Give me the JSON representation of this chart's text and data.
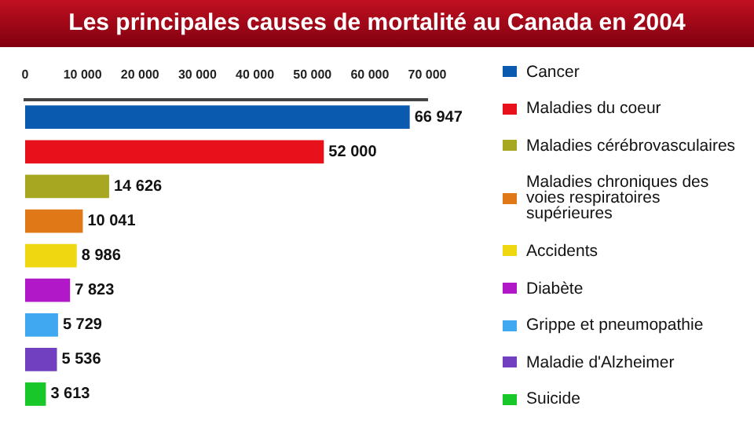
{
  "chart_data": {
    "type": "bar",
    "orientation": "horizontal",
    "title": "Les principales causes de mortalité au Canada en 2004",
    "categories": [
      null,
      null,
      null,
      null,
      null,
      null,
      null,
      null,
      null
    ],
    "series": [
      {
        "name": "Cancer",
        "color": "#0a5bb0",
        "values": [
          66947,
          null,
          null,
          null,
          null,
          null,
          null,
          null,
          null
        ],
        "value_labels": [
          "66 947",
          null,
          null,
          null,
          null,
          null,
          null,
          null,
          null
        ]
      },
      {
        "name": "Maladies du coeur",
        "color": "#e8101a",
        "values": [
          null,
          52000,
          null,
          null,
          null,
          null,
          null,
          null,
          null
        ],
        "value_labels": [
          null,
          "52 000",
          null,
          null,
          null,
          null,
          null,
          null,
          null
        ]
      },
      {
        "name": "Maladies cérébrovasculaires",
        "color": "#a8a820",
        "values": [
          null,
          null,
          14626,
          null,
          null,
          null,
          null,
          null,
          null
        ],
        "value_labels": [
          null,
          null,
          "14 626",
          null,
          null,
          null,
          null,
          null,
          null
        ]
      },
      {
        "name": "Maladies chroniques des voies respiratoires supérieures",
        "color": "#e07818",
        "values": [
          null,
          null,
          null,
          10041,
          null,
          null,
          null,
          null,
          null
        ],
        "value_labels": [
          null,
          null,
          null,
          "10 041",
          null,
          null,
          null,
          null,
          null
        ]
      },
      {
        "name": "Accidents",
        "color": "#f0d810",
        "values": [
          null,
          null,
          null,
          null,
          8986,
          null,
          null,
          null,
          null
        ],
        "value_labels": [
          null,
          null,
          null,
          null,
          "8 986",
          null,
          null,
          null,
          null
        ]
      },
      {
        "name": "Diabète",
        "color": "#b018c8",
        "values": [
          null,
          null,
          null,
          null,
          null,
          7823,
          null,
          null,
          null
        ],
        "value_labels": [
          null,
          null,
          null,
          null,
          null,
          "7 823",
          null,
          null,
          null
        ]
      },
      {
        "name": "Grippe et pneumopathie",
        "color": "#40a8f0",
        "values": [
          null,
          null,
          null,
          null,
          null,
          null,
          5729,
          null,
          null
        ],
        "value_labels": [
          null,
          null,
          null,
          null,
          null,
          null,
          "5 729",
          null,
          null
        ]
      },
      {
        "name": "Maladie d'Alzheimer",
        "color": "#7040c0",
        "values": [
          null,
          null,
          null,
          null,
          null,
          null,
          null,
          5536,
          null
        ],
        "value_labels": [
          null,
          null,
          null,
          null,
          null,
          null,
          null,
          "5 536",
          null
        ]
      },
      {
        "name": "Suicide",
        "color": "#18c828",
        "values": [
          null,
          null,
          null,
          null,
          null,
          null,
          null,
          null,
          3613
        ],
        "value_labels": [
          null,
          null,
          null,
          null,
          null,
          null,
          null,
          null,
          "3 613"
        ]
      }
    ],
    "xlim": [
      0,
      70000
    ],
    "xticks": [
      0,
      {
        "value": 10000,
        "label": "10 000"
      },
      {
        "value": 20000,
        "label": "20 000"
      },
      {
        "value": 30000,
        "label": "30 000"
      },
      {
        "value": 40000,
        "label": "40 000"
      },
      {
        "value": 50000,
        "label": "50 000"
      },
      {
        "value": 60000,
        "label": "60 000"
      },
      {
        "value": 70000,
        "label": "70 000"
      }
    ],
    "tick_labels": "x",
    "grid": false,
    "legend": "right",
    "stacked": true
  }
}
